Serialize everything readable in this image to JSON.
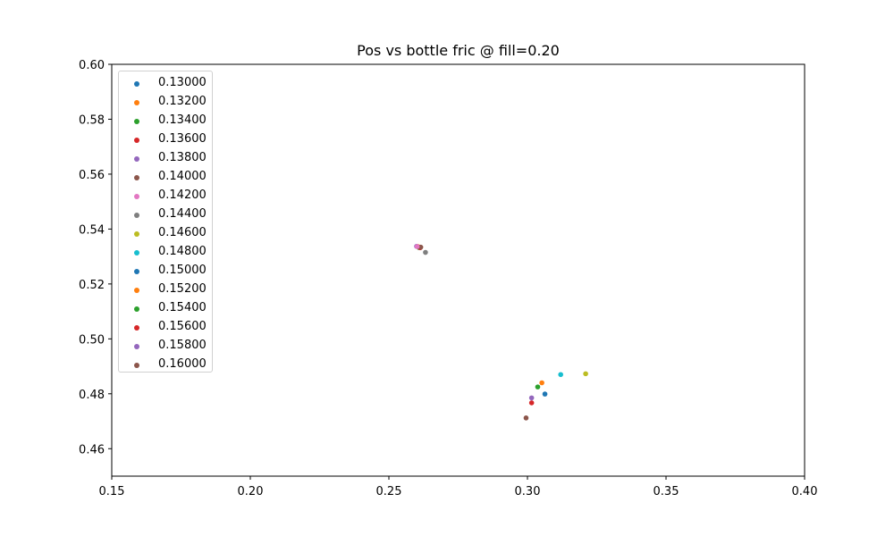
{
  "chart_data": {
    "type": "scatter",
    "title": "Pos vs bottle fric @ fill=0.20",
    "xlabel": "",
    "ylabel": "",
    "xlim": [
      0.15,
      0.4
    ],
    "ylim": [
      0.45,
      0.6
    ],
    "x_ticks": [
      "0.15",
      "0.20",
      "0.25",
      "0.30",
      "0.35",
      "0.40"
    ],
    "y_ticks": [
      "0.46",
      "0.48",
      "0.50",
      "0.52",
      "0.54",
      "0.56",
      "0.58",
      "0.60"
    ],
    "grid": false,
    "legend_position": "top-left",
    "series": [
      {
        "name": "0.13000",
        "color": "#1f77b4",
        "x": [
          0.261
        ],
        "y": [
          0.5333
        ]
      },
      {
        "name": "0.13200",
        "color": "#ff7f0e",
        "x": [
          0.2605
        ],
        "y": [
          0.5336
        ]
      },
      {
        "name": "0.13400",
        "color": "#2ca02c",
        "x": [
          0.2608
        ],
        "y": [
          0.5333
        ]
      },
      {
        "name": "0.13600",
        "color": "#d62728",
        "x": [
          0.2613
        ],
        "y": [
          0.5332
        ]
      },
      {
        "name": "0.13800",
        "color": "#9467bd",
        "x": [
          0.26
        ],
        "y": [
          0.5337
        ]
      },
      {
        "name": "0.14000",
        "color": "#8c564b",
        "x": [
          0.2615
        ],
        "y": [
          0.5334
        ]
      },
      {
        "name": "0.14200",
        "color": "#e377c2",
        "x": [
          0.2602
        ],
        "y": [
          0.5336
        ]
      },
      {
        "name": "0.14400",
        "color": "#7f7f7f",
        "x": [
          0.2632
        ],
        "y": [
          0.5315
        ]
      },
      {
        "name": "0.14600",
        "color": "#bcbd22",
        "x": [
          0.321
        ],
        "y": [
          0.4873
        ]
      },
      {
        "name": "0.14800",
        "color": "#17becf",
        "x": [
          0.312
        ],
        "y": [
          0.487
        ]
      },
      {
        "name": "0.15000",
        "color": "#1f77b4",
        "x": [
          0.3063
        ],
        "y": [
          0.4799
        ]
      },
      {
        "name": "0.15200",
        "color": "#ff7f0e",
        "x": [
          0.3052
        ],
        "y": [
          0.484
        ]
      },
      {
        "name": "0.15400",
        "color": "#2ca02c",
        "x": [
          0.3037
        ],
        "y": [
          0.4825
        ]
      },
      {
        "name": "0.15600",
        "color": "#d62728",
        "x": [
          0.3015
        ],
        "y": [
          0.4767
        ]
      },
      {
        "name": "0.15800",
        "color": "#9467bd",
        "x": [
          0.3015
        ],
        "y": [
          0.4785
        ]
      },
      {
        "name": "0.16000",
        "color": "#8c564b",
        "x": [
          0.2995
        ],
        "y": [
          0.4712
        ]
      }
    ]
  }
}
